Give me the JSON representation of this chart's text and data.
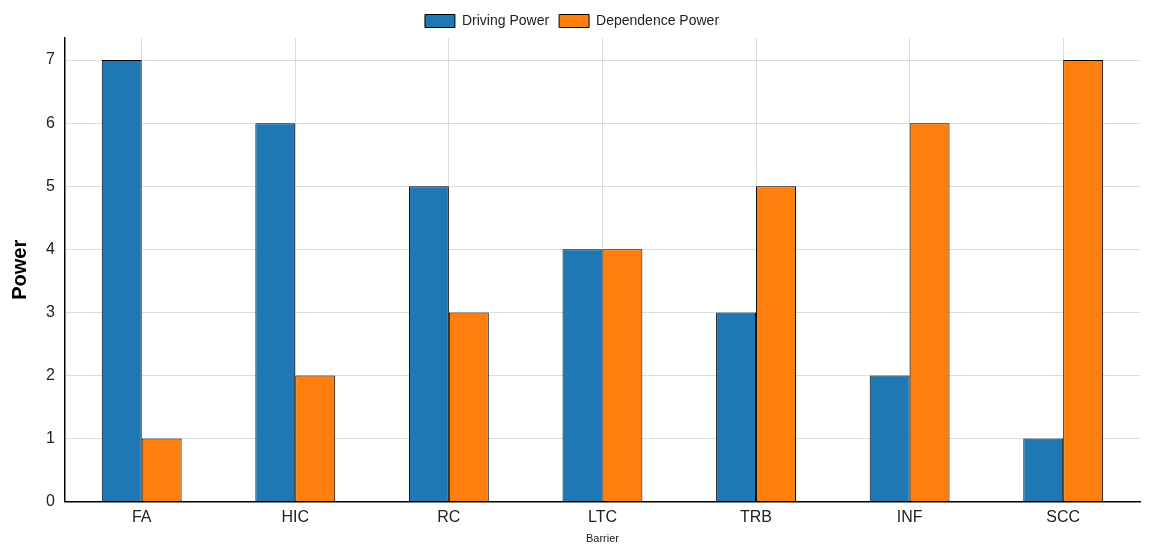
{
  "chart_data": {
    "type": "bar",
    "xlabel": "Barrier",
    "ylabel": "Power",
    "categories": [
      "FA",
      "HIC",
      "RC",
      "LTC",
      "TRB",
      "INF",
      "SCC"
    ],
    "series": [
      {
        "name": "Driving Power",
        "color": "#1f77b4",
        "values": [
          7,
          6,
          5,
          4,
          3,
          2,
          1
        ]
      },
      {
        "name": "Dependence Power",
        "color": "#ff7f0e",
        "values": [
          1,
          2,
          3,
          4,
          5,
          6,
          7
        ]
      }
    ],
    "ylim": [
      0,
      7.35
    ],
    "yticks": [
      0,
      1,
      2,
      3,
      4,
      5,
      6,
      7
    ],
    "grid": true,
    "legend": "top"
  }
}
